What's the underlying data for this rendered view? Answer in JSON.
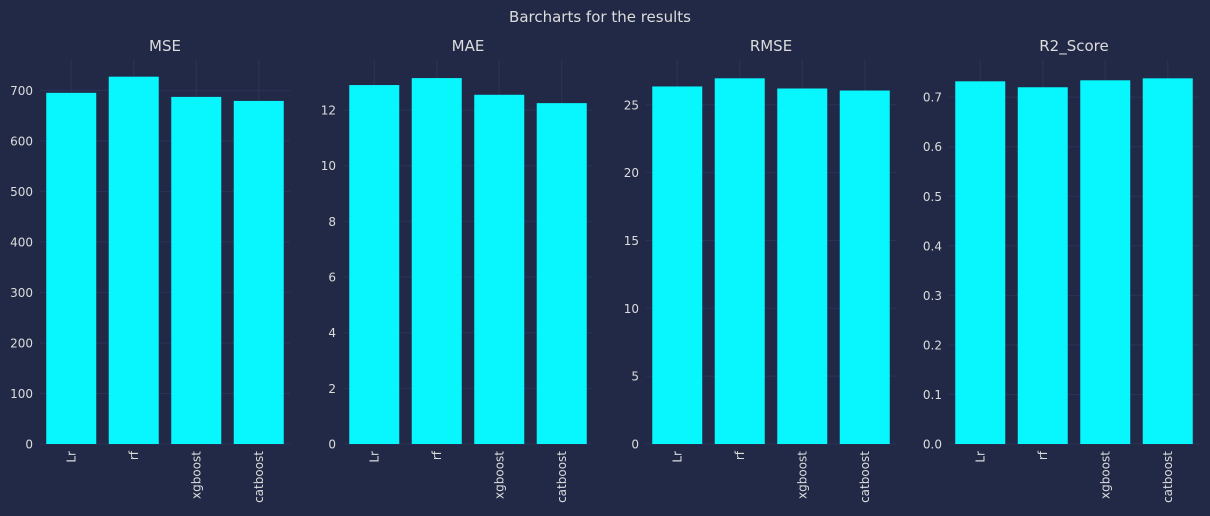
{
  "figure": {
    "title": "Barcharts for the results",
    "background": "#212946",
    "text_color": "#dcdcdc",
    "grid_color": "#2a3459",
    "bar_color": "#08F7FE"
  },
  "chart_data": [
    {
      "type": "bar",
      "title": "MSE",
      "categories": [
        "Lr",
        "rf",
        "xgboost",
        "catboost"
      ],
      "values": [
        695,
        727,
        687,
        679
      ],
      "ylim": [
        0,
        760
      ],
      "yticks": [
        0,
        100,
        200,
        300,
        400,
        500,
        600,
        700
      ],
      "ytick_labels": [
        "0",
        "100",
        "200",
        "300",
        "400",
        "500",
        "600",
        "700"
      ],
      "xlabel": "",
      "ylabel": "",
      "grid": true
    },
    {
      "type": "bar",
      "title": "MAE",
      "categories": [
        "Lr",
        "rf",
        "xgboost",
        "catboost"
      ],
      "values": [
        12.9,
        13.15,
        12.55,
        12.25
      ],
      "ylim": [
        0,
        13.8
      ],
      "yticks": [
        0,
        2,
        4,
        6,
        8,
        10,
        12
      ],
      "ytick_labels": [
        "0",
        "2",
        "4",
        "6",
        "8",
        "10",
        "12"
      ],
      "xlabel": "",
      "ylabel": "",
      "grid": true
    },
    {
      "type": "bar",
      "title": "RMSE",
      "categories": [
        "Lr",
        "rf",
        "xgboost",
        "catboost"
      ],
      "values": [
        26.35,
        26.95,
        26.2,
        26.05
      ],
      "ylim": [
        0,
        28.3
      ],
      "yticks": [
        0,
        5,
        10,
        15,
        20,
        25
      ],
      "ytick_labels": [
        "0",
        "5",
        "10",
        "15",
        "20",
        "25"
      ],
      "xlabel": "",
      "ylabel": "",
      "grid": true
    },
    {
      "type": "bar",
      "title": "R2_Score",
      "categories": [
        "Lr",
        "rf",
        "xgboost",
        "catboost"
      ],
      "values": [
        0.732,
        0.72,
        0.734,
        0.738
      ],
      "ylim": [
        0,
        0.775
      ],
      "yticks": [
        0,
        0.1,
        0.2,
        0.3,
        0.4,
        0.5,
        0.6,
        0.7
      ],
      "ytick_labels": [
        "0.0",
        "0.1",
        "0.2",
        "0.3",
        "0.4",
        "0.5",
        "0.6",
        "0.7"
      ],
      "xlabel": "",
      "ylabel": "",
      "grid": true
    }
  ]
}
